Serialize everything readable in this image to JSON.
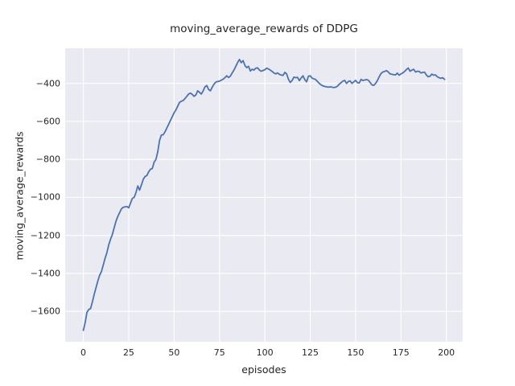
{
  "figure": {
    "title": "moving_average_rewards of DDPG",
    "xlabel": "episodes",
    "ylabel": "moving_average_rewards"
  },
  "style": {
    "plot_background": "#EAEAF2",
    "grid_color": "#FFFFFF",
    "line_color": "#4C72B0",
    "text_color": "#262626",
    "figure_background": "#FFFFFF"
  },
  "chart_data": {
    "type": "line",
    "title": "moving_average_rewards of DDPG",
    "xlabel": "episodes",
    "ylabel": "moving_average_rewards",
    "grid": true,
    "legend_position": "none",
    "xlim": [
      -10,
      209
    ],
    "ylim": [
      -1760,
      -215
    ],
    "xticks": [
      0,
      25,
      50,
      75,
      100,
      125,
      150,
      175,
      200
    ],
    "xtick_labels": [
      "0",
      "25",
      "50",
      "75",
      "100",
      "125",
      "150",
      "175",
      "200"
    ],
    "yticks": [
      -400,
      -600,
      -800,
      -1000,
      -1200,
      -1400,
      -1600
    ],
    "ytick_labels": [
      "−400",
      "−600",
      "−800",
      "−1000",
      "−1200",
      "−1400",
      "−1600"
    ],
    "x_start": 0,
    "x_step": 1,
    "series": [
      {
        "name": "moving_average_rewards",
        "color": "#4C72B0",
        "line_width": 1.8,
        "values": [
          -1700,
          -1660,
          -1605,
          -1590,
          -1585,
          -1550,
          -1510,
          -1475,
          -1440,
          -1410,
          -1390,
          -1355,
          -1320,
          -1290,
          -1250,
          -1220,
          -1195,
          -1160,
          -1125,
          -1100,
          -1080,
          -1060,
          -1052,
          -1050,
          -1048,
          -1055,
          -1030,
          -1005,
          -1000,
          -975,
          -940,
          -962,
          -935,
          -905,
          -890,
          -885,
          -865,
          -852,
          -848,
          -815,
          -800,
          -760,
          -700,
          -672,
          -670,
          -655,
          -635,
          -615,
          -595,
          -575,
          -555,
          -540,
          -520,
          -500,
          -494,
          -490,
          -480,
          -468,
          -456,
          -451,
          -458,
          -468,
          -461,
          -439,
          -447,
          -456,
          -440,
          -418,
          -411,
          -432,
          -439,
          -420,
          -404,
          -393,
          -390,
          -388,
          -383,
          -378,
          -370,
          -360,
          -369,
          -362,
          -345,
          -330,
          -310,
          -290,
          -274,
          -291,
          -280,
          -305,
          -317,
          -310,
          -335,
          -325,
          -330,
          -320,
          -318,
          -330,
          -336,
          -332,
          -328,
          -320,
          -324,
          -330,
          -337,
          -345,
          -350,
          -345,
          -352,
          -356,
          -358,
          -342,
          -350,
          -378,
          -395,
          -385,
          -367,
          -370,
          -368,
          -385,
          -372,
          -360,
          -380,
          -392,
          -362,
          -360,
          -372,
          -376,
          -380,
          -390,
          -400,
          -408,
          -413,
          -416,
          -418,
          -420,
          -418,
          -420,
          -422,
          -420,
          -415,
          -404,
          -396,
          -388,
          -384,
          -400,
          -390,
          -387,
          -400,
          -392,
          -384,
          -396,
          -398,
          -379,
          -385,
          -382,
          -380,
          -383,
          -395,
          -408,
          -410,
          -400,
          -385,
          -365,
          -348,
          -340,
          -337,
          -333,
          -340,
          -350,
          -352,
          -354,
          -355,
          -346,
          -357,
          -350,
          -345,
          -337,
          -327,
          -319,
          -336,
          -330,
          -326,
          -340,
          -336,
          -337,
          -345,
          -342,
          -341,
          -356,
          -365,
          -362,
          -351,
          -357,
          -355,
          -365,
          -370,
          -373,
          -370,
          -379
        ]
      }
    ]
  }
}
